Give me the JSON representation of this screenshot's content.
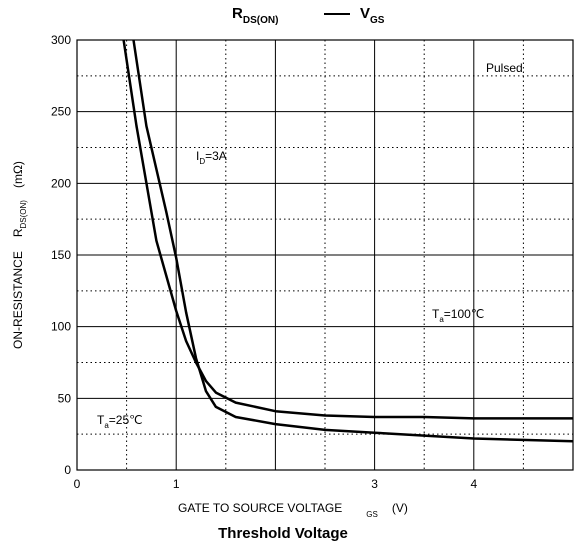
{
  "chart_data": {
    "type": "line",
    "title_parts": [
      "R",
      "DS(ON)",
      "V",
      "GS"
    ],
    "subtitle": "Threshold Voltage",
    "x_label_parts": [
      "GATE TO SOURCE VOLTAGE",
      "GS",
      "(V)"
    ],
    "y_label_parts": [
      "ON-RESISTANCE",
      "R",
      "DS(ON)",
      "(mΩ)"
    ],
    "xlim": [
      0,
      5
    ],
    "ylim": [
      0,
      300
    ],
    "xticks": [
      0,
      1,
      {
        "value": 2,
        "label": null
      },
      3,
      4
    ],
    "yticks": [
      0,
      50,
      100,
      150,
      200,
      250,
      300
    ],
    "grid": true,
    "annotations": {
      "pulsed": "Pulsed",
      "id_parts": [
        "I",
        "D",
        "=3A"
      ]
    },
    "series": [
      {
        "label_parts": [
          "T",
          "a",
          "=100℃"
        ],
        "color": "#000000",
        "x": [
          0.47,
          0.6,
          0.8,
          1.0,
          1.1,
          1.2,
          1.3,
          1.4,
          1.6,
          2.0,
          2.5,
          3.0,
          3.5,
          4.0,
          5.0
        ],
        "values": [
          300,
          240,
          160,
          111,
          90,
          75,
          62,
          54,
          47,
          41,
          38,
          37,
          37,
          36,
          36
        ]
      },
      {
        "label_parts": [
          "T",
          "a",
          "=25℃"
        ],
        "color": "#000000",
        "x": [
          0.57,
          0.7,
          0.9,
          1.0,
          1.1,
          1.2,
          1.3,
          1.4,
          1.6,
          2.0,
          2.5,
          3.0,
          3.5,
          4.0,
          5.0
        ],
        "values": [
          300,
          240,
          180,
          148,
          110,
          78,
          55,
          44,
          37,
          32,
          28,
          26,
          24,
          22,
          20
        ]
      }
    ]
  }
}
